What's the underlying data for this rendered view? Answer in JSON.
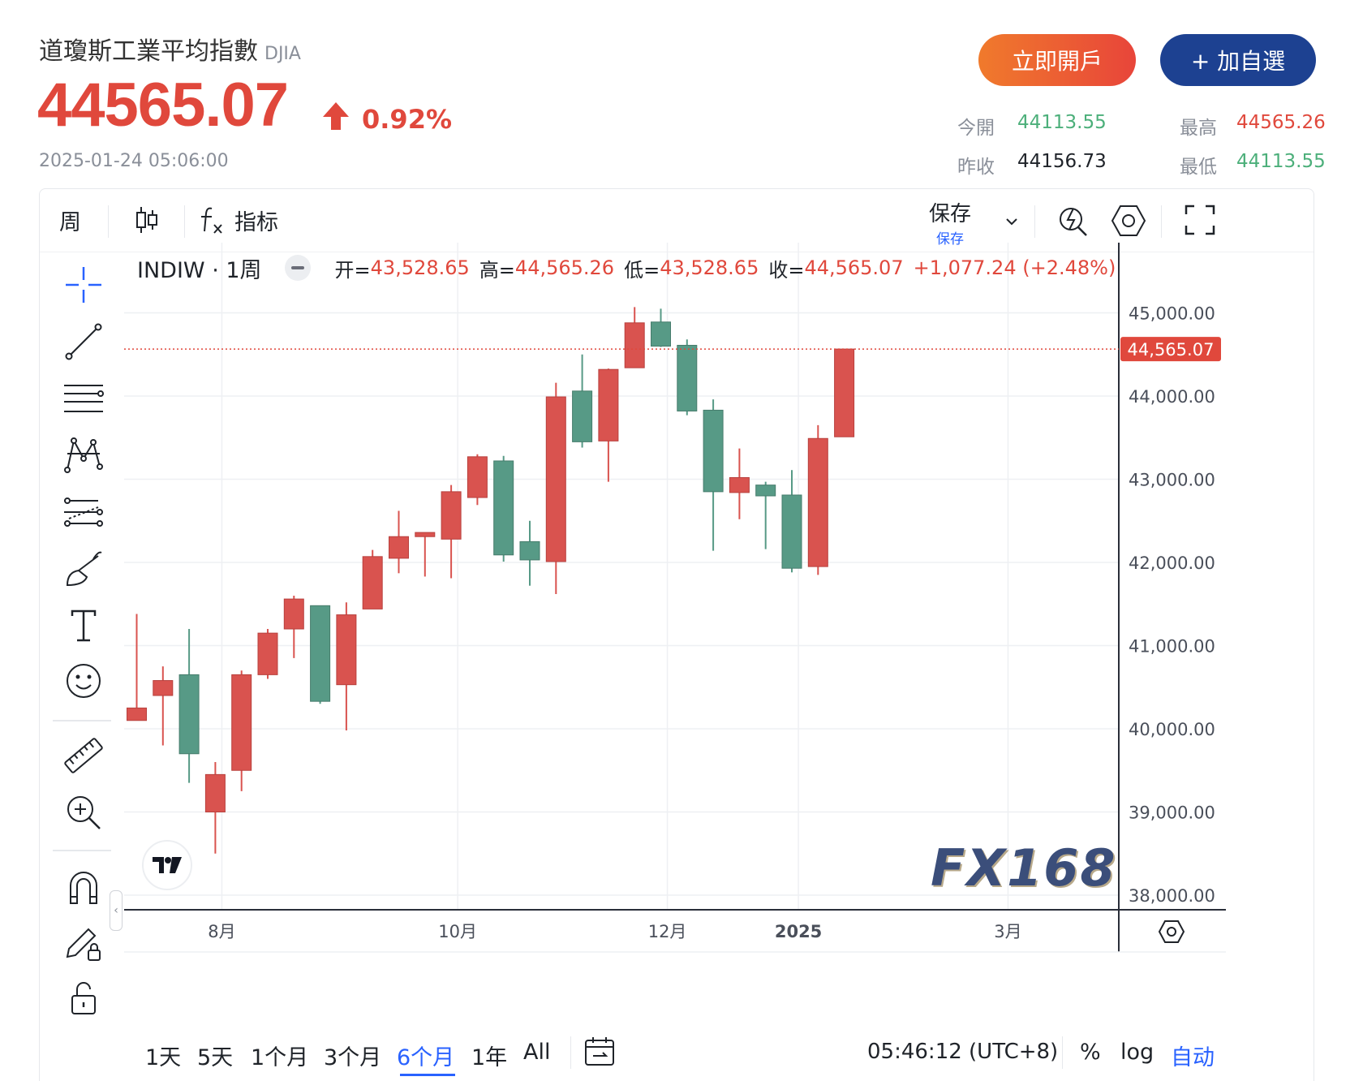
{
  "header": {
    "name": "道瓊斯工業平均指數",
    "ticker": "DJIA",
    "price": "44565.07",
    "change_pct": "0.92%",
    "timestamp": "2025-01-24 05:06:00",
    "open_account_label": "立即開戶",
    "add_watch_label": "+ 加自選"
  },
  "stats": {
    "open_label": "今開",
    "open_value": "44113.55",
    "high_label": "最高",
    "high_value": "44565.26",
    "prev_close_label": "昨收",
    "prev_close_value": "44156.73",
    "low_label": "最低",
    "low_value": "44113.55"
  },
  "toolbar": {
    "interval": "周",
    "indicators_label": "指标",
    "save_label": "保存",
    "save_sub_label": "保存"
  },
  "legend": {
    "symbol": "INDIW · 1周",
    "open_label": "开=",
    "open_value": "43,528.65",
    "high_label": "高=",
    "high_value": "44,565.26",
    "low_label": "低=",
    "low_value": "43,528.65",
    "close_label": "收=",
    "close_value": "44,565.07",
    "change": "+1,077.24 (+2.48%)"
  },
  "chart_data": {
    "type": "candlestick",
    "y_ticks": [
      38000,
      39000,
      40000,
      41000,
      42000,
      43000,
      44000,
      45000
    ],
    "y_tick_labels": [
      "38,000.00",
      "39,000.00",
      "40,000.00",
      "41,000.00",
      "42,000.00",
      "43,000.00",
      "44,000.00",
      "45,000.00"
    ],
    "ylim": [
      37800,
      45300
    ],
    "x_labels": [
      {
        "label": "8月",
        "week": 3.25
      },
      {
        "label": "10月",
        "week": 12.25
      },
      {
        "label": "12月",
        "week": 20.25
      },
      {
        "label": "2025",
        "week": 25.25
      },
      {
        "label": "3月",
        "week": 33.25
      }
    ],
    "last_price": 44565.07,
    "last_price_label": "44,565.07",
    "up_color": "#d9534f",
    "down_color": "#579a86",
    "candles": [
      {
        "o": 40100,
        "h": 41380,
        "l": 40100,
        "c": 40250
      },
      {
        "o": 40400,
        "h": 40750,
        "l": 39800,
        "c": 40580
      },
      {
        "o": 40650,
        "h": 41200,
        "l": 39350,
        "c": 39700
      },
      {
        "o": 39000,
        "h": 39600,
        "l": 38500,
        "c": 39450
      },
      {
        "o": 39500,
        "h": 40700,
        "l": 39250,
        "c": 40650
      },
      {
        "o": 40650,
        "h": 41200,
        "l": 40600,
        "c": 41150
      },
      {
        "o": 41200,
        "h": 41600,
        "l": 40850,
        "c": 41560
      },
      {
        "o": 41480,
        "h": 41480,
        "l": 40300,
        "c": 40330
      },
      {
        "o": 40530,
        "h": 41520,
        "l": 39980,
        "c": 41370
      },
      {
        "o": 41440,
        "h": 42150,
        "l": 41440,
        "c": 42070
      },
      {
        "o": 42050,
        "h": 42620,
        "l": 41870,
        "c": 42310
      },
      {
        "o": 42310,
        "h": 42360,
        "l": 41830,
        "c": 42360
      },
      {
        "o": 42280,
        "h": 42930,
        "l": 41810,
        "c": 42850
      },
      {
        "o": 42780,
        "h": 43300,
        "l": 42690,
        "c": 43270
      },
      {
        "o": 43220,
        "h": 43280,
        "l": 42010,
        "c": 42090
      },
      {
        "o": 42250,
        "h": 42500,
        "l": 41720,
        "c": 42030
      },
      {
        "o": 42010,
        "h": 44160,
        "l": 41620,
        "c": 43990
      },
      {
        "o": 44060,
        "h": 44500,
        "l": 43380,
        "c": 43450
      },
      {
        "o": 43460,
        "h": 44330,
        "l": 42970,
        "c": 44320
      },
      {
        "o": 44340,
        "h": 45070,
        "l": 44340,
        "c": 44880
      },
      {
        "o": 44890,
        "h": 45050,
        "l": 44590,
        "c": 44600
      },
      {
        "o": 44610,
        "h": 44680,
        "l": 43770,
        "c": 43820
      },
      {
        "o": 43830,
        "h": 43960,
        "l": 42140,
        "c": 42850
      },
      {
        "o": 42840,
        "h": 43370,
        "l": 42520,
        "c": 43020
      },
      {
        "o": 42930,
        "h": 42970,
        "l": 42160,
        "c": 42800
      },
      {
        "o": 42810,
        "h": 43110,
        "l": 41880,
        "c": 41930
      },
      {
        "o": 41950,
        "h": 43650,
        "l": 41850,
        "c": 43490
      },
      {
        "o": 43510,
        "h": 44565,
        "l": 43510,
        "c": 44565
      }
    ]
  },
  "watermark": "FX168",
  "bottom_bar": {
    "ranges": [
      "1天",
      "5天",
      "1个月",
      "3个月",
      "6个月",
      "1年",
      "All"
    ],
    "active_range": "6个月",
    "clock": "05:46:12 (UTC+8)",
    "pct_label": "%",
    "log_label": "log",
    "auto_label": "自动"
  },
  "icons": [
    "crosshair-icon",
    "trend-line-icon",
    "fib-icon",
    "pattern-icon",
    "prediction-icon",
    "brush-icon",
    "text-icon",
    "emoji-icon",
    "ruler-icon",
    "zoom-in-icon",
    "magnet-icon",
    "lock-draw-icon",
    "lock-icon",
    "candle-type-icon",
    "fx-icon",
    "chevron-down-icon",
    "quick-search-icon",
    "settings-icon",
    "fullscreen-icon",
    "calendar-icon",
    "tradingview-logo-icon"
  ]
}
